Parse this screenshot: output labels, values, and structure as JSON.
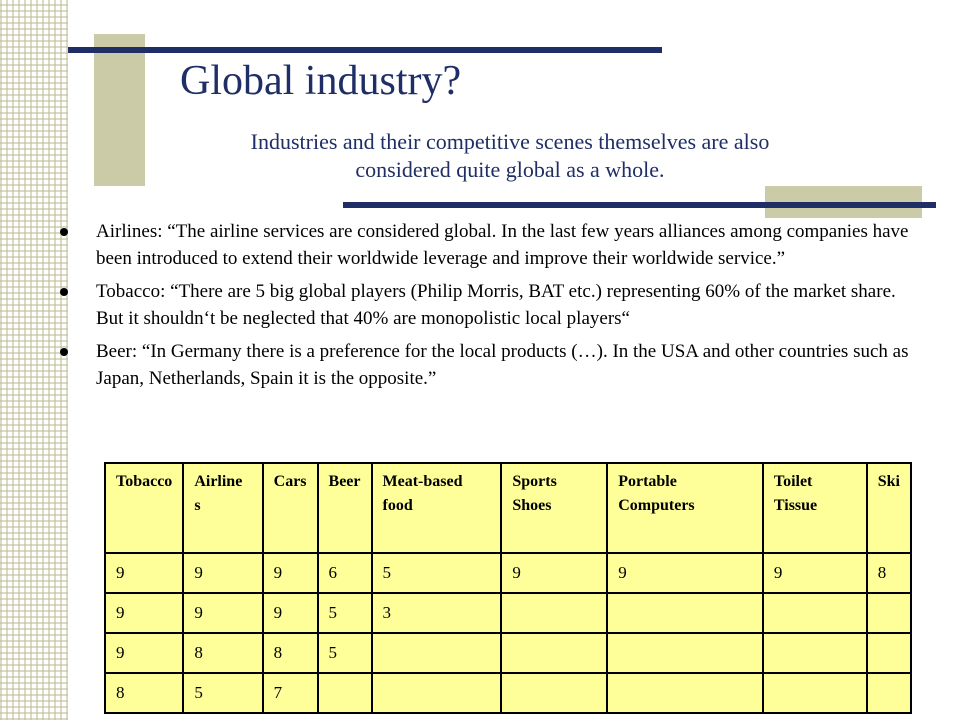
{
  "title": "Global industry?",
  "subtitle_line1": "Industries and their competitive scenes themselves are also",
  "subtitle_line2": "considered quite global as a whole.",
  "bullets": [
    "Airlines: “The airline services are considered global. In the last few years alliances among companies have been introduced to extend their worldwide leverage and improve their worldwide service.”",
    "Tobacco: “There are 5 big global players (Philip Morris, BAT etc.) representing 60% of the market share. But it shouldn‘t be neglected that 40% are monopolistic local players“",
    "Beer: “In Germany there is a preference for the local products (…). In the USA and other countries such as Japan, Netherlands, Spain it is the opposite.”"
  ],
  "table": {
    "headers": [
      "Tobacco",
      "Airline s",
      "Cars",
      "Beer",
      "Meat-based food",
      "Sports Shoes",
      "Portable Computers",
      "Toilet Tissue",
      "Ski"
    ],
    "rows": [
      [
        "9",
        "9",
        "9",
        "6",
        "5",
        "9",
        "9",
        "9",
        "8"
      ],
      [
        "9",
        "9",
        "9",
        "5",
        "3",
        "",
        "",
        "",
        ""
      ],
      [
        "9",
        "8",
        "8",
        "5",
        "",
        "",
        "",
        "",
        ""
      ],
      [
        "8",
        "5",
        "7",
        "",
        "",
        "",
        "",
        "",
        ""
      ]
    ]
  },
  "colors": {
    "accent_navy": "#1f2e66",
    "accent_khaki": "#cbcba8",
    "table_fill": "#ffff99"
  }
}
